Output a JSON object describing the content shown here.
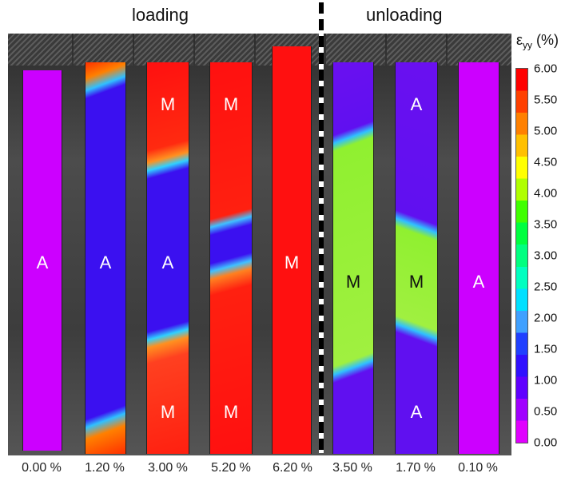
{
  "headers": {
    "loading": "loading",
    "unloading": "unloading"
  },
  "colorbar": {
    "label_main": "ε",
    "label_sub": "yy",
    "label_unit": " (%)",
    "ticks": [
      "6.00",
      "5.50",
      "5.00",
      "4.50",
      "4.00",
      "3.50",
      "3.00",
      "2.50",
      "2.00",
      "1.50",
      "1.00",
      "0.50",
      "0.00"
    ],
    "colors": [
      "#ff0000",
      "#ff4000",
      "#ff8000",
      "#ffc000",
      "#ffff00",
      "#b0ff00",
      "#40ff00",
      "#00ff40",
      "#00ff80",
      "#00ffc0",
      "#00e0ff",
      "#40a0ff",
      "#2040ff",
      "#3010ff",
      "#6000ff",
      "#a000ff",
      "#e000ff"
    ]
  },
  "phase_colors": {
    "A_load": "#cc00ff",
    "A_low": "#3b10f0",
    "M_full": "#ff1010",
    "M_mid": "#90f030"
  },
  "strips": [
    {
      "strain": "0.00 %",
      "labels": [
        {
          "text": "A",
          "y": 328
        }
      ]
    },
    {
      "strain": "1.20 %",
      "labels": [
        {
          "text": "A",
          "y": 328
        }
      ]
    },
    {
      "strain": "3.00 %",
      "labels": [
        {
          "text": "M",
          "y": 130
        },
        {
          "text": "A",
          "y": 328
        },
        {
          "text": "M",
          "y": 515
        }
      ]
    },
    {
      "strain": "5.20 %",
      "labels": [
        {
          "text": "M",
          "y": 130
        },
        {
          "text": "M",
          "y": 515
        }
      ]
    },
    {
      "strain": "6.20 %",
      "labels": [
        {
          "text": "M",
          "y": 328
        }
      ]
    },
    {
      "strain": "3.50 %",
      "labels": [
        {
          "text": "M",
          "y": 352
        }
      ]
    },
    {
      "strain": "1.70 %",
      "labels": [
        {
          "text": "A",
          "y": 130
        },
        {
          "text": "M",
          "y": 352
        },
        {
          "text": "A",
          "y": 515
        }
      ]
    },
    {
      "strain": "0.10 %",
      "labels": [
        {
          "text": "A",
          "y": 352
        }
      ]
    }
  ]
}
